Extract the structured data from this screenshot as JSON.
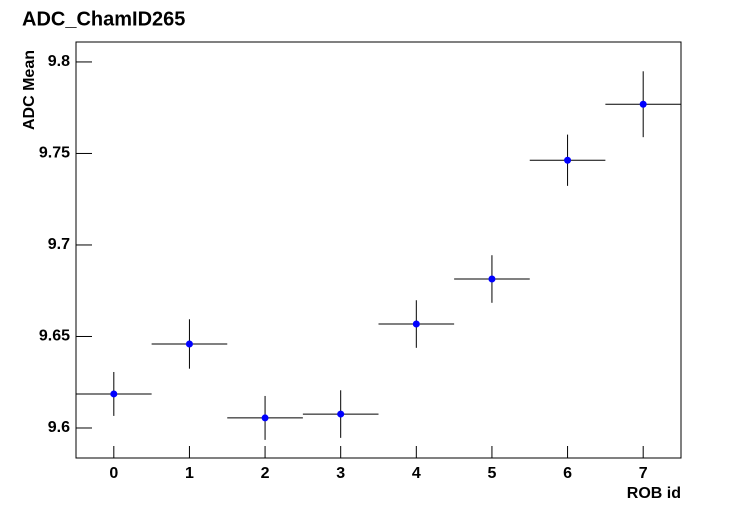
{
  "chart_data": {
    "type": "scatter",
    "title": "ADC_ChamID265",
    "xlabel": "ROB id",
    "ylabel": "ADC Mean",
    "x": [
      0,
      1,
      2,
      3,
      4,
      5,
      6,
      7
    ],
    "values": [
      9.6186,
      9.6459,
      9.6055,
      9.6076,
      9.6568,
      9.6814,
      9.7463,
      9.7769
    ],
    "yerr": [
      0.012,
      0.0135,
      0.012,
      0.013,
      0.013,
      0.013,
      0.014,
      0.018
    ],
    "xerr": [
      0.5,
      0.5,
      0.5,
      0.5,
      0.5,
      0.5,
      0.5,
      0.5
    ],
    "color": "#0000ff",
    "xlim": [
      -0.5,
      7.5
    ],
    "xticks": [
      0,
      1,
      2,
      3,
      4,
      5,
      6,
      7
    ],
    "ylim": [
      9.5836,
      9.8109
    ],
    "yticks": [
      9.6,
      9.65,
      9.7,
      9.75,
      9.8
    ]
  }
}
